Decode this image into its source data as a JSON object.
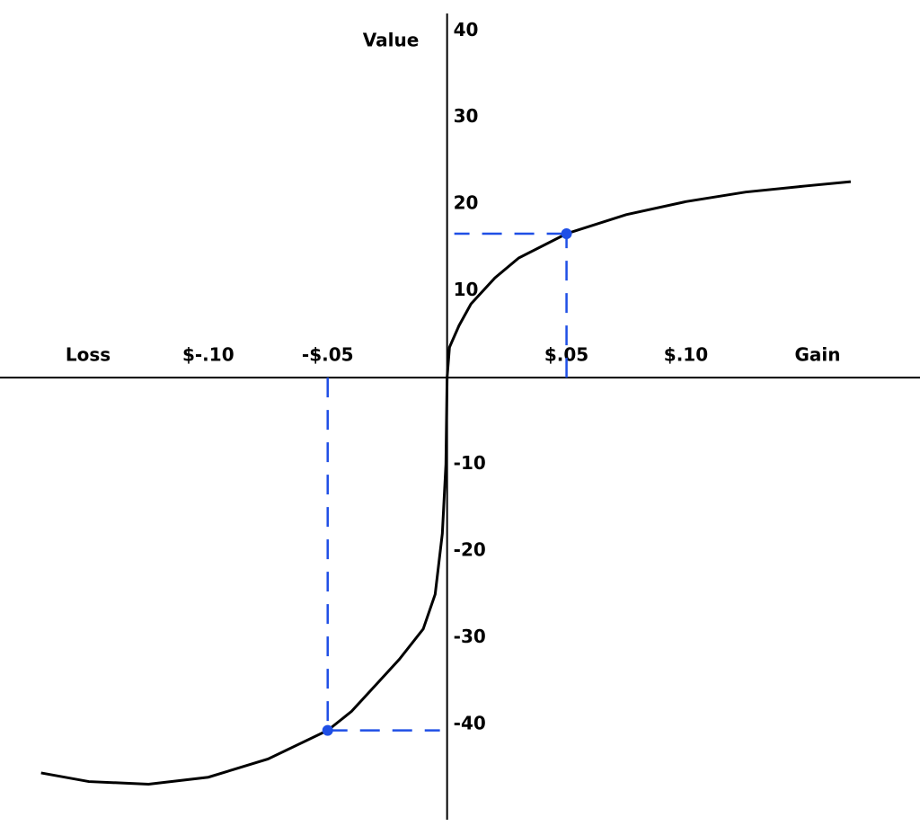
{
  "chart_data": {
    "type": "line",
    "ylabel": "Value",
    "xlabel_loss": "Loss",
    "xlabel_gain": "Gain",
    "xlim": [
      -0.1872,
      0.198
    ],
    "ylim": [
      -51,
      42
    ],
    "xticks": [
      {
        "value": -0.1,
        "label": "$-.10"
      },
      {
        "value": -0.05,
        "label": "-$.05"
      },
      {
        "value": 0.05,
        "label": "$.05"
      },
      {
        "value": 0.1,
        "label": "$.10"
      }
    ],
    "yticks": [
      40,
      30,
      20,
      10,
      -10,
      -20,
      -30,
      -40
    ],
    "x": [
      -0.17,
      -0.15,
      -0.125,
      -0.1,
      -0.075,
      -0.05,
      -0.04,
      -0.03,
      -0.02,
      -0.01,
      -0.005,
      -0.002,
      -0.0005,
      0,
      0.001,
      0.005,
      0.01,
      0.02,
      0.03,
      0.05,
      0.075,
      0.1,
      0.125,
      0.15,
      0.169
    ],
    "series": [
      {
        "color": "#000000",
        "values": [
          -45.6,
          -46.6,
          -46.9,
          -46.1,
          -44.0,
          -40.7,
          -38.5,
          -35.5,
          -32.5,
          -29.0,
          -25.0,
          -18.0,
          -10.0,
          0,
          3.5,
          6.0,
          8.5,
          11.5,
          13.8,
          16.6,
          18.8,
          20.3,
          21.4,
          22.1,
          22.6
        ]
      }
    ],
    "highlight": {
      "color": "#1f4fe6",
      "x": [
        -0.05,
        0.05
      ],
      "values": [
        -40.7,
        16.6
      ]
    }
  }
}
